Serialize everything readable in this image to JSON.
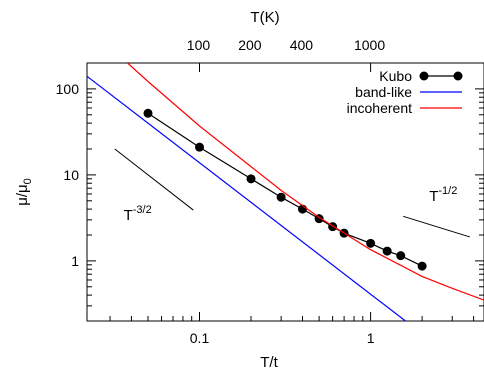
{
  "chart_data": {
    "type": "line",
    "xlabel": "T/t",
    "ylabel": "μ/μ",
    "ylabel_sub": "0",
    "top_axis_label": "T(K)",
    "x_scale": "log",
    "y_scale": "log",
    "xlim": [
      0.022,
      4.6
    ],
    "ylim": [
      0.2,
      200
    ],
    "grid": false,
    "legend_position": "top-right",
    "x_ticks": [
      {
        "value": 0.1,
        "label": "0.1"
      },
      {
        "value": 1,
        "label": "1"
      }
    ],
    "y_ticks": [
      {
        "value": 1,
        "label": "1"
      },
      {
        "value": 10,
        "label": "10"
      },
      {
        "value": 100,
        "label": "100"
      }
    ],
    "top_ticks": [
      {
        "value": 0.0986,
        "label": "100"
      },
      {
        "value": 0.197,
        "label": "200"
      },
      {
        "value": 0.394,
        "label": "400"
      },
      {
        "value": 0.986,
        "label": "1000"
      }
    ],
    "series": [
      {
        "name": "Kubo",
        "color": "#000000",
        "marker": "circle",
        "x": [
          0.05,
          0.1,
          0.2,
          0.3,
          0.4,
          0.5,
          0.6,
          0.7,
          1.0,
          1.25,
          1.5,
          2.0
        ],
        "y": [
          52,
          21,
          9.0,
          5.5,
          4.0,
          3.1,
          2.5,
          2.1,
          1.6,
          1.3,
          1.15,
          0.87
        ]
      },
      {
        "name": "band-like",
        "color": "#0000ff",
        "x": [
          0.022,
          1.6
        ],
        "y": [
          140,
          0.2
        ]
      },
      {
        "name": "incoherent",
        "color": "#ff0000",
        "x": [
          0.038,
          0.05,
          0.1,
          0.2,
          0.3,
          0.5,
          1.0,
          2.0,
          3.0,
          4.6
        ],
        "y": [
          200,
          122,
          37,
          12.5,
          6.6,
          3.2,
          1.35,
          0.66,
          0.48,
          0.35
        ]
      }
    ],
    "annotations": [
      {
        "label": "T",
        "exponent": "-3/2",
        "line": {
          "x": [
            0.032,
            0.092
          ],
          "y": [
            20,
            3.9
          ]
        },
        "text_pos": {
          "x": 0.036,
          "y": 3.0
        }
      },
      {
        "label": "T",
        "exponent": "-1/2",
        "line": {
          "x": [
            1.55,
            3.8
          ],
          "y": [
            3.3,
            1.9
          ]
        },
        "text_pos": {
          "x": 2.2,
          "y": 5.0
        }
      }
    ]
  }
}
